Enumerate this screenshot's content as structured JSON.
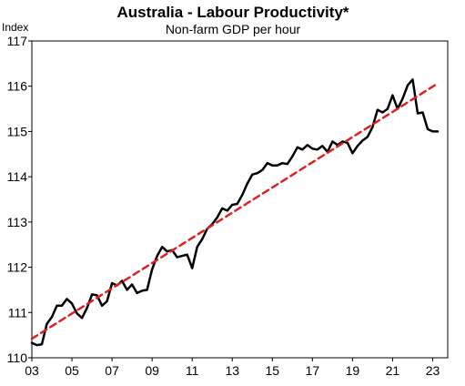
{
  "chart_data": {
    "type": "line",
    "title": "Australia - Labour Productivity*",
    "subtitle": "Non-farm GDP per hour",
    "ylabel": "Index",
    "xlabel": "",
    "ylim": [
      110,
      117
    ],
    "xlim": [
      2003.0,
      2023.75
    ],
    "y_ticks": [
      110,
      111,
      112,
      113,
      114,
      115,
      116,
      117
    ],
    "x_ticks": [
      {
        "value": 2003,
        "label": "03"
      },
      {
        "value": 2005,
        "label": "05"
      },
      {
        "value": 2007,
        "label": "07"
      },
      {
        "value": 2009,
        "label": "09"
      },
      {
        "value": 2011,
        "label": "11"
      },
      {
        "value": 2013,
        "label": "13"
      },
      {
        "value": 2015,
        "label": "15"
      },
      {
        "value": 2017,
        "label": "17"
      },
      {
        "value": 2019,
        "label": "19"
      },
      {
        "value": 2021,
        "label": "21"
      },
      {
        "value": 2023,
        "label": "23"
      }
    ],
    "grid": false,
    "legend": "none",
    "series": [
      {
        "style": "solid",
        "color": "#000000",
        "x": [
          2003.0,
          2003.25,
          2003.5,
          2003.75,
          2004.0,
          2004.25,
          2004.5,
          2004.75,
          2005.0,
          2005.25,
          2005.5,
          2005.75,
          2006.0,
          2006.25,
          2006.5,
          2006.75,
          2007.0,
          2007.25,
          2007.5,
          2007.75,
          2008.0,
          2008.25,
          2008.5,
          2008.75,
          2009.0,
          2009.25,
          2009.5,
          2009.75,
          2010.0,
          2010.25,
          2010.5,
          2010.75,
          2011.0,
          2011.25,
          2011.5,
          2011.75,
          2012.0,
          2012.25,
          2012.5,
          2012.75,
          2013.0,
          2013.25,
          2013.5,
          2013.75,
          2014.0,
          2014.25,
          2014.5,
          2014.75,
          2015.0,
          2015.25,
          2015.5,
          2015.75,
          2016.0,
          2016.25,
          2016.5,
          2016.75,
          2017.0,
          2017.25,
          2017.5,
          2017.75,
          2018.0,
          2018.25,
          2018.5,
          2018.75,
          2019.0,
          2019.25,
          2019.5,
          2019.75,
          2020.0,
          2020.25,
          2020.5,
          2020.75,
          2021.0,
          2021.25,
          2021.5,
          2021.75,
          2022.0,
          2022.25,
          2022.5,
          2022.75,
          2023.0,
          2023.25
        ],
        "values": [
          110.33,
          110.28,
          110.3,
          110.75,
          110.9,
          111.15,
          111.15,
          111.3,
          111.2,
          110.98,
          110.88,
          111.1,
          111.4,
          111.38,
          111.15,
          111.25,
          111.65,
          111.6,
          111.7,
          111.5,
          111.62,
          111.43,
          111.48,
          111.5,
          111.95,
          112.25,
          112.45,
          112.35,
          112.38,
          112.22,
          112.25,
          112.28,
          111.98,
          112.45,
          112.62,
          112.85,
          112.95,
          113.1,
          113.3,
          113.25,
          113.38,
          113.4,
          113.6,
          113.85,
          114.05,
          114.08,
          114.15,
          114.3,
          114.25,
          114.25,
          114.3,
          114.28,
          114.45,
          114.65,
          114.6,
          114.7,
          114.62,
          114.6,
          114.68,
          114.55,
          114.78,
          114.7,
          114.78,
          114.75,
          114.52,
          114.68,
          114.8,
          114.88,
          115.1,
          115.48,
          115.42,
          115.5,
          115.8,
          115.5,
          115.72,
          116.02,
          116.15,
          115.4,
          115.42,
          115.05,
          115.0,
          115.0
        ]
      },
      {
        "style": "dashed",
        "color": "#e02020",
        "x": [
          2003.0,
          2023.25
        ],
        "values": [
          110.42,
          116.06
        ]
      }
    ]
  }
}
